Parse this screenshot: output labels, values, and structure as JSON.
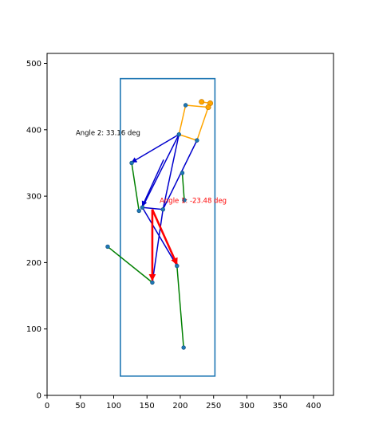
{
  "chart_data": {
    "type": "line",
    "title": "",
    "xlabel": "",
    "ylabel": "",
    "xlim": [
      0,
      430
    ],
    "ylim": [
      0,
      515
    ],
    "xticks": [
      0,
      50,
      100,
      150,
      200,
      250,
      300,
      350,
      400
    ],
    "yticks": [
      0,
      100,
      200,
      300,
      400,
      500
    ],
    "grid": false,
    "colors": {
      "box": "#1f77b4",
      "orange": "#ffa500",
      "blue": "#0000cd",
      "green": "#008000",
      "red": "#ff0000",
      "marker": "#1f77b4",
      "head_marker": "#ffa500",
      "angle2": "#000000"
    },
    "bounding_box": {
      "x": [
        110,
        252
      ],
      "y": [
        29,
        477
      ]
    },
    "segments": [
      {
        "name": "head",
        "color": "orange",
        "width": 1.5,
        "points": [
          [
            232,
            442
          ],
          [
            245,
            440
          ],
          [
            242,
            434
          ],
          [
            208,
            437
          ],
          [
            198,
            393
          ],
          [
            225,
            384
          ],
          [
            242,
            434
          ]
        ]
      },
      {
        "name": "torso",
        "color": "blue",
        "width": 1.5,
        "points": [
          [
            198,
            393
          ],
          [
            143,
            283
          ],
          [
            174,
            280
          ],
          [
            225,
            384
          ]
        ]
      },
      {
        "name": "torso-cross-1",
        "color": "blue",
        "width": 1.5,
        "points": [
          [
            174,
            280
          ],
          [
            198,
            393
          ]
        ]
      },
      {
        "name": "torso-cross-2",
        "color": "blue",
        "width": 1.5,
        "points": [
          [
            143,
            283
          ],
          [
            195,
            195
          ]
        ]
      },
      {
        "name": "torso-cross-3",
        "color": "blue",
        "width": 1.5,
        "points": [
          [
            174,
            280
          ],
          [
            158,
            170
          ]
        ]
      },
      {
        "name": "left-arm",
        "color": "green",
        "width": 1.5,
        "points": [
          [
            127,
            350
          ],
          [
            138,
            278
          ]
        ]
      },
      {
        "name": "right-arm",
        "color": "green",
        "width": 1.5,
        "points": [
          [
            203,
            335
          ],
          [
            206,
            294
          ]
        ]
      },
      {
        "name": "left-leg",
        "color": "green",
        "width": 1.5,
        "points": [
          [
            91,
            224
          ],
          [
            158,
            170
          ]
        ]
      },
      {
        "name": "right-leg",
        "color": "green",
        "width": 1.5,
        "points": [
          [
            195,
            195
          ],
          [
            205,
            72
          ]
        ]
      }
    ],
    "arrows": [
      {
        "name": "blue-arrow-1",
        "color": "blue",
        "width": 1.5,
        "from": [
          198,
          393
        ],
        "to": [
          127,
          351
        ]
      },
      {
        "name": "blue-arrow-2",
        "color": "blue",
        "width": 1.5,
        "from": [
          175,
          355
        ],
        "to": [
          143,
          285
        ]
      },
      {
        "name": "red-arrow-1",
        "color": "red",
        "width": 2.6,
        "from": [
          158,
          280
        ],
        "to": [
          158,
          173
        ]
      },
      {
        "name": "red-arrow-2",
        "color": "red",
        "width": 2.6,
        "from": [
          158,
          280
        ],
        "to": [
          195,
          197
        ]
      }
    ],
    "markers": [
      {
        "color": "marker",
        "points": [
          [
            127,
            350
          ],
          [
            138,
            278
          ],
          [
            143,
            283
          ],
          [
            174,
            280
          ],
          [
            198,
            393
          ],
          [
            225,
            384
          ],
          [
            203,
            335
          ],
          [
            206,
            294
          ],
          [
            158,
            170
          ],
          [
            195,
            195
          ],
          [
            91,
            224
          ],
          [
            205,
            72
          ],
          [
            208,
            437
          ]
        ]
      },
      {
        "color": "head_marker",
        "points": [
          [
            232,
            442
          ],
          [
            245,
            440
          ],
          [
            242,
            434
          ]
        ]
      }
    ],
    "annotations": [
      {
        "name": "angle-2-label",
        "text": "Angle 2: 33.16 deg",
        "x": 140,
        "y": 392,
        "anchor": "end",
        "color": "angle2"
      },
      {
        "name": "angle-1-label",
        "text": "Angle 1: -23.48 deg",
        "x": 169,
        "y": 290,
        "anchor": "start",
        "color": "red"
      }
    ]
  }
}
